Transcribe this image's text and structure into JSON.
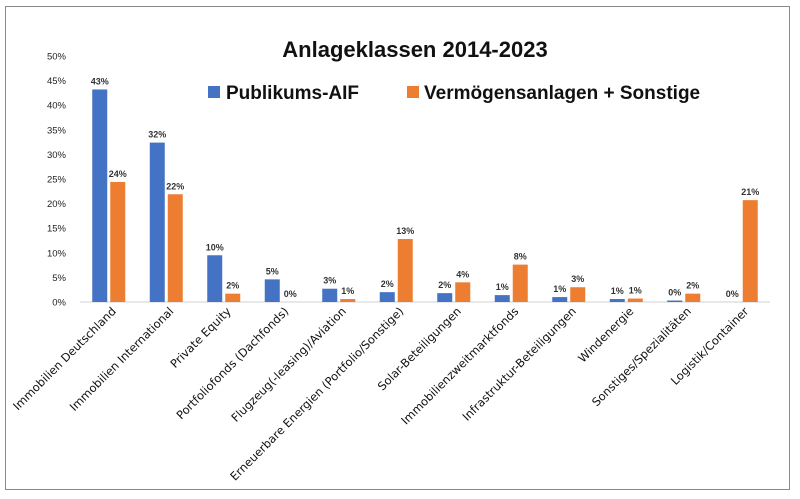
{
  "chart_data": {
    "type": "bar",
    "title": "Anlageklassen 2014-2023",
    "xlabel": "",
    "ylabel": "",
    "ylim": [
      0,
      50
    ],
    "yticks": [
      "0%",
      "5%",
      "10%",
      "15%",
      "20%",
      "25%",
      "30%",
      "35%",
      "40%",
      "45%",
      "50%"
    ],
    "legend_position": "top",
    "grid": false,
    "categories": [
      "Immobilien Deutschland",
      "Immobilien International",
      "Private Equity",
      "Portfoliofonds (Dachfonds)",
      "Flugzeug(-leasing)/Aviation",
      "Erneuerbare Energien (Portfolio/Sonstige)",
      "Solar-Beteiligungen",
      "Immobilienzweitmarktfonds",
      "Infrastruktur-Beteiligungen",
      "Windenergie",
      "Sonstiges/Spezialitäten",
      "Logistik/Container"
    ],
    "series": [
      {
        "name": "Publikums-AIF",
        "color": "#4472C4",
        "values": [
          43.2,
          32.4,
          9.5,
          4.6,
          2.7,
          2.0,
          1.8,
          1.4,
          1.0,
          0.6,
          0.3,
          0.0
        ],
        "labels": [
          "43%",
          "32%",
          "10%",
          "5%",
          "3%",
          "2%",
          "2%",
          "1%",
          "1%",
          "1%",
          "0%",
          "0%"
        ]
      },
      {
        "name": "Vermögensanlagen + Sonstige",
        "color": "#ED7D31",
        "values": [
          24.4,
          21.9,
          1.7,
          0.0,
          0.6,
          12.8,
          4.0,
          7.6,
          3.0,
          0.7,
          1.7,
          20.7
        ],
        "labels": [
          "24%",
          "22%",
          "2%",
          "0%",
          "1%",
          "13%",
          "4%",
          "8%",
          "3%",
          "1%",
          "2%",
          "21%"
        ]
      }
    ]
  }
}
